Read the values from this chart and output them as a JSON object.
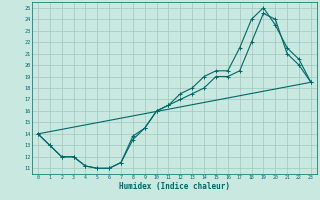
{
  "title": "",
  "xlabel": "Humidex (Indice chaleur)",
  "ylabel": "",
  "bg_color": "#c8e8e0",
  "grid_color": "#a0c8c0",
  "line_color": "#006868",
  "xlim": [
    -0.5,
    23.5
  ],
  "ylim": [
    10.5,
    25.5
  ],
  "xticks": [
    0,
    1,
    2,
    3,
    4,
    5,
    6,
    7,
    8,
    9,
    10,
    11,
    12,
    13,
    14,
    15,
    16,
    17,
    18,
    19,
    20,
    21,
    22,
    23
  ],
  "yticks": [
    11,
    12,
    13,
    14,
    15,
    16,
    17,
    18,
    19,
    20,
    21,
    22,
    23,
    24,
    25
  ],
  "line1_x": [
    0,
    1,
    2,
    3,
    4,
    5,
    6,
    7,
    8,
    9,
    10,
    11,
    12,
    13,
    14,
    15,
    16,
    17,
    18,
    19,
    20,
    21,
    22,
    23
  ],
  "line1_y": [
    14,
    13,
    12,
    12,
    11.2,
    11,
    11,
    11.5,
    13.8,
    14.5,
    16,
    16.5,
    17,
    17.5,
    18,
    19,
    19,
    19.5,
    22,
    24.5,
    24,
    21,
    20,
    18.5
  ],
  "line2_x": [
    0,
    1,
    2,
    3,
    4,
    5,
    6,
    7,
    8,
    9,
    10,
    11,
    12,
    13,
    14,
    15,
    16,
    17,
    18,
    19,
    20,
    21,
    22,
    23
  ],
  "line2_y": [
    14,
    13,
    12,
    12,
    11.2,
    11,
    11,
    11.5,
    13.5,
    14.5,
    16,
    16.5,
    17.5,
    18,
    19,
    19.5,
    19.5,
    21.5,
    24,
    25,
    23.5,
    21.5,
    20.5,
    18.5
  ],
  "line3_x": [
    0,
    23
  ],
  "line3_y": [
    14,
    18.5
  ]
}
